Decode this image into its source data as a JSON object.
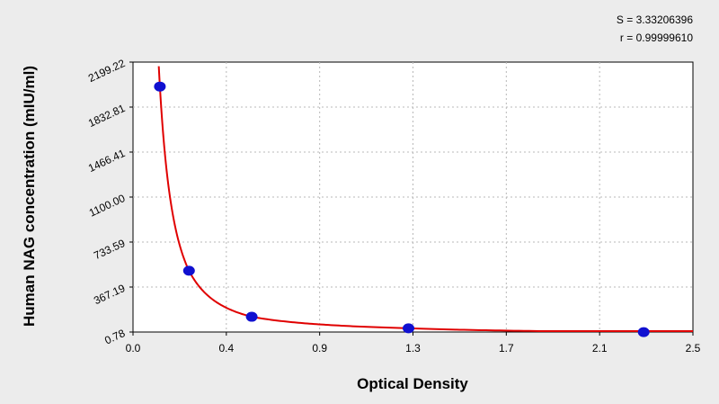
{
  "stats": {
    "s_text": "S = 3.33206396",
    "r_text": "r = 0.99999610"
  },
  "chart_data": {
    "type": "scatter",
    "xlabel": "Optical Density",
    "ylabel": "Human NAG concentration (mIU/ml)",
    "xlim": [
      0.0,
      2.5
    ],
    "ylim": [
      0.78,
      2199.22
    ],
    "x_ticks": [
      "0.0",
      "0.4",
      "0.9",
      "1.3",
      "1.7",
      "2.1",
      "2.5"
    ],
    "y_ticks": [
      "0.78",
      "367.19",
      "733.59",
      "1100.00",
      "1466.41",
      "1832.81",
      "2199.22"
    ],
    "grid": true,
    "series": [
      {
        "points": [
          {
            "x": 0.12,
            "y": 2000
          },
          {
            "x": 0.25,
            "y": 500
          },
          {
            "x": 0.53,
            "y": 125
          },
          {
            "x": 1.23,
            "y": 31.25
          },
          {
            "x": 2.28,
            "y": 0
          }
        ],
        "color": "#1010d0"
      }
    ],
    "fit_curve": {
      "color": "#e00000",
      "x_start": 0.115,
      "x_end": 2.5
    }
  }
}
